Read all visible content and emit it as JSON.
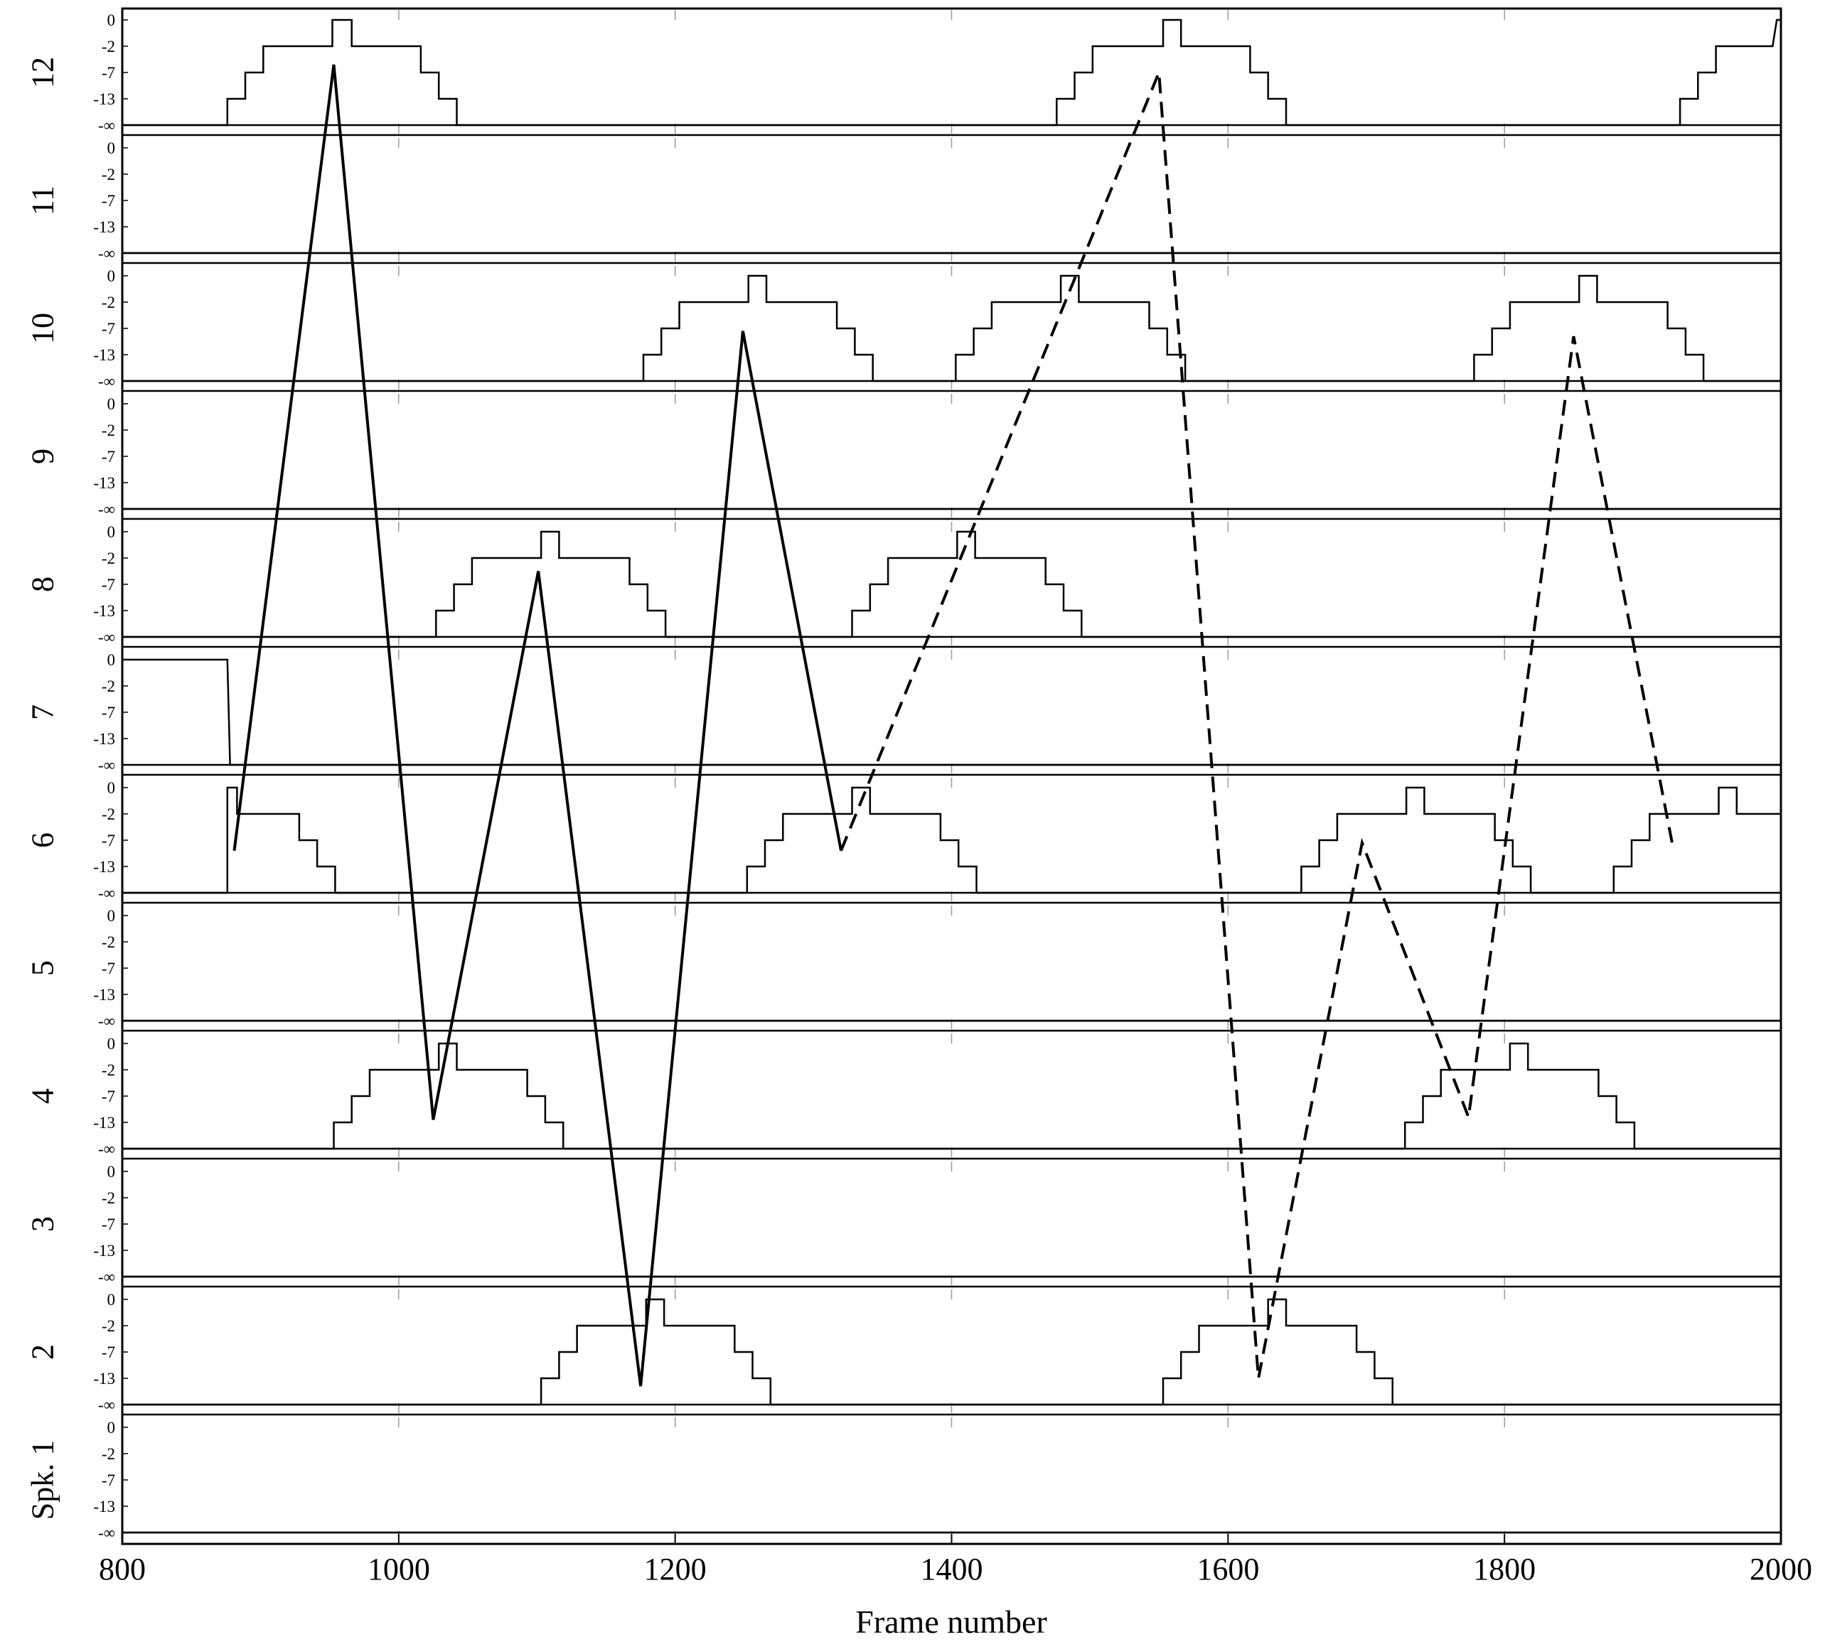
{
  "chart_data": {
    "type": "line",
    "xlabel": "Frame number",
    "xlim": [
      800,
      2000
    ],
    "x_ticks": [
      "800",
      "1000",
      "1200",
      "1400",
      "1600",
      "1800",
      "2000"
    ],
    "y_tick_labels": [
      "0",
      "-2",
      "-7",
      "-13",
      "-∞"
    ],
    "y_level_values_db": [
      0,
      -2,
      -7,
      -13,
      null
    ],
    "rows": [
      "12",
      "11",
      "10",
      "9",
      "8",
      "7",
      "6",
      "5",
      "4",
      "3",
      "2",
      "Spk. 1"
    ],
    "gain_traces": {
      "12": [
        [
          800,
          4
        ],
        [
          876,
          4
        ],
        [
          876,
          3
        ],
        [
          889,
          3
        ],
        [
          889,
          2
        ],
        [
          902,
          2
        ],
        [
          902,
          1
        ],
        [
          952,
          1
        ],
        [
          952,
          0
        ],
        [
          966,
          0
        ],
        [
          966,
          1
        ],
        [
          1016,
          1
        ],
        [
          1016,
          2
        ],
        [
          1029,
          2
        ],
        [
          1029,
          3
        ],
        [
          1042,
          3
        ],
        [
          1042,
          4
        ],
        [
          1476,
          4
        ],
        [
          1476,
          3
        ],
        [
          1489,
          3
        ],
        [
          1489,
          2
        ],
        [
          1502,
          2
        ],
        [
          1502,
          1
        ],
        [
          1553,
          1
        ],
        [
          1553,
          0
        ],
        [
          1566,
          0
        ],
        [
          1566,
          1
        ],
        [
          1616,
          1
        ],
        [
          1616,
          2
        ],
        [
          1629,
          2
        ],
        [
          1629,
          3
        ],
        [
          1642,
          3
        ],
        [
          1642,
          4
        ],
        [
          1927,
          4
        ],
        [
          1927,
          3
        ],
        [
          1940,
          3
        ],
        [
          1940,
          2
        ],
        [
          1953,
          2
        ],
        [
          1953,
          1
        ],
        [
          1994,
          1
        ],
        [
          1997,
          0
        ],
        [
          2000,
          0
        ]
      ],
      "11": [
        [
          800,
          4
        ],
        [
          2000,
          4
        ]
      ],
      "10": [
        [
          800,
          4
        ],
        [
          1177,
          4
        ],
        [
          1177,
          3
        ],
        [
          1190,
          3
        ],
        [
          1190,
          2
        ],
        [
          1203,
          2
        ],
        [
          1203,
          1
        ],
        [
          1253,
          1
        ],
        [
          1253,
          0
        ],
        [
          1266,
          0
        ],
        [
          1266,
          1
        ],
        [
          1317,
          1
        ],
        [
          1317,
          2
        ],
        [
          1330,
          2
        ],
        [
          1330,
          3
        ],
        [
          1343,
          3
        ],
        [
          1343,
          4
        ],
        [
          1403,
          4
        ],
        [
          1403,
          3
        ],
        [
          1416,
          3
        ],
        [
          1416,
          2
        ],
        [
          1429,
          2
        ],
        [
          1429,
          1
        ],
        [
          1479,
          1
        ],
        [
          1479,
          0
        ],
        [
          1492,
          0
        ],
        [
          1492,
          1
        ],
        [
          1543,
          1
        ],
        [
          1543,
          2
        ],
        [
          1556,
          2
        ],
        [
          1556,
          3
        ],
        [
          1569,
          3
        ],
        [
          1569,
          4
        ],
        [
          1778,
          4
        ],
        [
          1778,
          3
        ],
        [
          1791,
          3
        ],
        [
          1791,
          2
        ],
        [
          1804,
          2
        ],
        [
          1804,
          1
        ],
        [
          1854,
          1
        ],
        [
          1854,
          0
        ],
        [
          1867,
          0
        ],
        [
          1867,
          1
        ],
        [
          1918,
          1
        ],
        [
          1918,
          2
        ],
        [
          1931,
          2
        ],
        [
          1931,
          3
        ],
        [
          1944,
          3
        ],
        [
          1944,
          4
        ],
        [
          2000,
          4
        ]
      ],
      "9": [
        [
          800,
          4
        ],
        [
          2000,
          4
        ]
      ],
      "8": [
        [
          800,
          4
        ],
        [
          1027,
          4
        ],
        [
          1027,
          3
        ],
        [
          1040,
          3
        ],
        [
          1040,
          2
        ],
        [
          1053,
          2
        ],
        [
          1053,
          1
        ],
        [
          1103,
          1
        ],
        [
          1103,
          0
        ],
        [
          1116,
          0
        ],
        [
          1116,
          1
        ],
        [
          1167,
          1
        ],
        [
          1167,
          2
        ],
        [
          1180,
          2
        ],
        [
          1180,
          3
        ],
        [
          1193,
          3
        ],
        [
          1193,
          4
        ],
        [
          1328,
          4
        ],
        [
          1328,
          3
        ],
        [
          1341,
          3
        ],
        [
          1341,
          2
        ],
        [
          1354,
          2
        ],
        [
          1354,
          1
        ],
        [
          1404,
          1
        ],
        [
          1404,
          0
        ],
        [
          1417,
          0
        ],
        [
          1417,
          1
        ],
        [
          1468,
          1
        ],
        [
          1468,
          2
        ],
        [
          1481,
          2
        ],
        [
          1481,
          3
        ],
        [
          1494,
          3
        ],
        [
          1494,
          4
        ],
        [
          2000,
          4
        ]
      ],
      "7": [
        [
          800,
          0
        ],
        [
          876,
          0
        ],
        [
          878,
          4
        ],
        [
          2000,
          4
        ]
      ],
      "6": [
        [
          800,
          4
        ],
        [
          876,
          4
        ],
        [
          876,
          0
        ],
        [
          883,
          0
        ],
        [
          883,
          1
        ],
        [
          928,
          1
        ],
        [
          928,
          2
        ],
        [
          941,
          2
        ],
        [
          941,
          3
        ],
        [
          954,
          3
        ],
        [
          954,
          4
        ],
        [
          1252,
          4
        ],
        [
          1252,
          3
        ],
        [
          1265,
          3
        ],
        [
          1265,
          2
        ],
        [
          1278,
          2
        ],
        [
          1278,
          1
        ],
        [
          1328,
          1
        ],
        [
          1328,
          0
        ],
        [
          1341,
          0
        ],
        [
          1341,
          1
        ],
        [
          1392,
          1
        ],
        [
          1392,
          2
        ],
        [
          1405,
          2
        ],
        [
          1405,
          3
        ],
        [
          1418,
          3
        ],
        [
          1418,
          4
        ],
        [
          1653,
          4
        ],
        [
          1653,
          3
        ],
        [
          1666,
          3
        ],
        [
          1666,
          2
        ],
        [
          1679,
          2
        ],
        [
          1679,
          1
        ],
        [
          1729,
          1
        ],
        [
          1729,
          0
        ],
        [
          1742,
          0
        ],
        [
          1742,
          1
        ],
        [
          1793,
          1
        ],
        [
          1793,
          2
        ],
        [
          1806,
          2
        ],
        [
          1806,
          3
        ],
        [
          1819,
          3
        ],
        [
          1819,
          4
        ],
        [
          1879,
          4
        ],
        [
          1879,
          3
        ],
        [
          1892,
          3
        ],
        [
          1892,
          2
        ],
        [
          1905,
          2
        ],
        [
          1905,
          1
        ],
        [
          1955,
          1
        ],
        [
          1955,
          0
        ],
        [
          1968,
          0
        ],
        [
          1968,
          1
        ],
        [
          2019,
          1
        ],
        [
          2019,
          2
        ],
        [
          2032,
          2
        ],
        [
          2032,
          3
        ],
        [
          2045,
          3
        ],
        [
          2045,
          4
        ]
      ],
      "5": [
        [
          800,
          4
        ],
        [
          2000,
          4
        ]
      ],
      "4": [
        [
          800,
          4
        ],
        [
          953,
          4
        ],
        [
          953,
          3
        ],
        [
          966,
          3
        ],
        [
          966,
          2
        ],
        [
          979,
          2
        ],
        [
          979,
          1
        ],
        [
          1029,
          1
        ],
        [
          1029,
          0
        ],
        [
          1042,
          0
        ],
        [
          1042,
          1
        ],
        [
          1093,
          1
        ],
        [
          1093,
          2
        ],
        [
          1106,
          2
        ],
        [
          1106,
          3
        ],
        [
          1119,
          3
        ],
        [
          1119,
          4
        ],
        [
          1728,
          4
        ],
        [
          1728,
          3
        ],
        [
          1741,
          3
        ],
        [
          1741,
          2
        ],
        [
          1754,
          2
        ],
        [
          1754,
          1
        ],
        [
          1804,
          1
        ],
        [
          1804,
          0
        ],
        [
          1817,
          0
        ],
        [
          1817,
          1
        ],
        [
          1868,
          1
        ],
        [
          1868,
          2
        ],
        [
          1881,
          2
        ],
        [
          1881,
          3
        ],
        [
          1894,
          3
        ],
        [
          1894,
          4
        ],
        [
          2000,
          4
        ]
      ],
      "3": [
        [
          800,
          4
        ],
        [
          2000,
          4
        ]
      ],
      "2": [
        [
          800,
          4
        ],
        [
          1103,
          4
        ],
        [
          1103,
          3
        ],
        [
          1116,
          3
        ],
        [
          1116,
          2
        ],
        [
          1129,
          2
        ],
        [
          1129,
          1
        ],
        [
          1179,
          1
        ],
        [
          1179,
          0
        ],
        [
          1192,
          0
        ],
        [
          1192,
          1
        ],
        [
          1243,
          1
        ],
        [
          1243,
          2
        ],
        [
          1256,
          2
        ],
        [
          1256,
          3
        ],
        [
          1269,
          3
        ],
        [
          1269,
          4
        ],
        [
          1553,
          4
        ],
        [
          1553,
          3
        ],
        [
          1566,
          3
        ],
        [
          1566,
          2
        ],
        [
          1579,
          2
        ],
        [
          1579,
          1
        ],
        [
          1629,
          1
        ],
        [
          1629,
          0
        ],
        [
          1642,
          0
        ],
        [
          1642,
          1
        ],
        [
          1693,
          1
        ],
        [
          1693,
          2
        ],
        [
          1706,
          2
        ],
        [
          1706,
          3
        ],
        [
          1719,
          3
        ],
        [
          1719,
          4
        ],
        [
          2000,
          4
        ]
      ],
      "Spk. 1": [
        [
          800,
          4
        ],
        [
          2000,
          4
        ]
      ]
    },
    "trajectory": {
      "solid": [
        [
          881,
          "6",
          2.4
        ],
        [
          953,
          "12",
          1.7
        ],
        [
          1025,
          "4",
          2.9
        ],
        [
          1101,
          "8",
          1.5
        ],
        [
          1175,
          "2",
          3.3
        ],
        [
          1249,
          "10",
          2.1
        ],
        [
          1320,
          "6",
          2.4
        ]
      ],
      "dashed": [
        [
          1320,
          "6",
          2.4
        ],
        [
          1550,
          "12",
          2.0
        ],
        [
          1622,
          "2",
          3.0
        ],
        [
          1697,
          "6",
          2.1
        ],
        [
          1774,
          "4",
          2.8
        ],
        [
          1850,
          "10",
          2.3
        ],
        [
          1922,
          "6",
          2.3
        ]
      ]
    },
    "grid": false,
    "legend": "none"
  }
}
